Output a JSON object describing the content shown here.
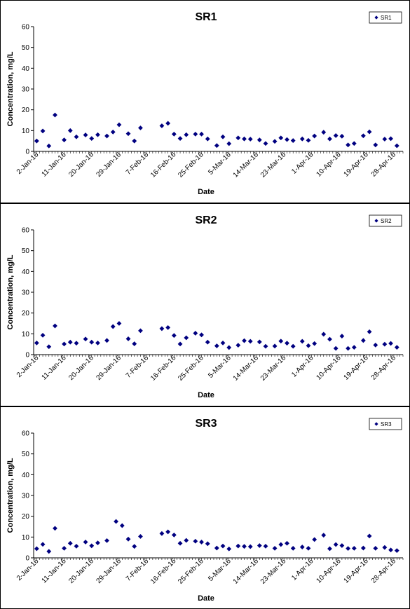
{
  "colors": {
    "marker": "#000080",
    "axis": "#000000",
    "background": "#ffffff"
  },
  "chart_data": [
    {
      "type": "scatter",
      "title": "SR1",
      "xlabel": "Date",
      "ylabel": "Concentration, mg/L",
      "ylim": [
        0,
        60
      ],
      "yticks": [
        "0",
        "10",
        "20",
        "30",
        "40",
        "50",
        "60"
      ],
      "xlim": [
        "2016-01-01",
        "2016-05-01"
      ],
      "xticks": [
        "2-Jan-16",
        "11-Jan-16",
        "20-Jan-16",
        "29-Jan-16",
        "7-Feb-16",
        "16-Feb-16",
        "25-Feb-16",
        "5-Mar-16",
        "14-Mar-16",
        "23-Mar-16",
        "1-Apr-16",
        "10-Apr-16",
        "19-Apr-16",
        "28-Apr-16"
      ],
      "grid": false,
      "legend": "top-right",
      "series": [
        {
          "name": "SR1",
          "marker": "diamond",
          "x": [
            "2016-01-02",
            "2016-01-04",
            "2016-01-06",
            "2016-01-08",
            "2016-01-11",
            "2016-01-13",
            "2016-01-15",
            "2016-01-18",
            "2016-01-20",
            "2016-01-22",
            "2016-01-25",
            "2016-01-27",
            "2016-01-29",
            "2016-02-01",
            "2016-02-03",
            "2016-02-05",
            "2016-02-12",
            "2016-02-14",
            "2016-02-16",
            "2016-02-18",
            "2016-02-20",
            "2016-02-23",
            "2016-02-25",
            "2016-02-27",
            "2016-03-01",
            "2016-03-03",
            "2016-03-05",
            "2016-03-08",
            "2016-03-10",
            "2016-03-12",
            "2016-03-15",
            "2016-03-17",
            "2016-03-20",
            "2016-03-22",
            "2016-03-24",
            "2016-03-26",
            "2016-03-29",
            "2016-03-31",
            "2016-04-02",
            "2016-04-05",
            "2016-04-07",
            "2016-04-09",
            "2016-04-11",
            "2016-04-13",
            "2016-04-15",
            "2016-04-18",
            "2016-04-20",
            "2016-04-22",
            "2016-04-25",
            "2016-04-27",
            "2016-04-29"
          ],
          "y": [
            5,
            9.8,
            2.6,
            17.5,
            5.5,
            10,
            7,
            7.9,
            6.2,
            8,
            7.4,
            9.3,
            12.8,
            8.5,
            5,
            11.3,
            12.3,
            13.5,
            8.3,
            6.2,
            8,
            8.3,
            8.3,
            6,
            2.8,
            7,
            3.7,
            6.5,
            6,
            5.9,
            5.5,
            3.8,
            4.8,
            6.5,
            5.7,
            5.2,
            6,
            5.3,
            7.4,
            9.2,
            6,
            7.6,
            7.3,
            3.1,
            3.8,
            7.5,
            9.4,
            3.1,
            5.9,
            6.1,
            2.7
          ]
        }
      ]
    },
    {
      "type": "scatter",
      "title": "SR2",
      "xlabel": "Date",
      "ylabel": "Concentration, mg/L",
      "ylim": [
        0,
        60
      ],
      "yticks": [
        "0",
        "10",
        "20",
        "30",
        "40",
        "50",
        "60"
      ],
      "xlim": [
        "2016-01-01",
        "2016-05-01"
      ],
      "xticks": [
        "2-Jan-16",
        "11-Jan-16",
        "20-Jan-16",
        "29-Jan-16",
        "7-Feb-16",
        "16-Feb-16",
        "25-Feb-16",
        "5-Mar-16",
        "14-Mar-16",
        "23-Mar-16",
        "1-Apr-16",
        "10-Apr-16",
        "19-Apr-16",
        "28-Apr-16"
      ],
      "grid": false,
      "legend": "top-right",
      "series": [
        {
          "name": "SR2",
          "marker": "diamond",
          "x": [
            "2016-01-02",
            "2016-01-04",
            "2016-01-06",
            "2016-01-08",
            "2016-01-11",
            "2016-01-13",
            "2016-01-15",
            "2016-01-18",
            "2016-01-20",
            "2016-01-22",
            "2016-01-25",
            "2016-01-27",
            "2016-01-29",
            "2016-02-01",
            "2016-02-03",
            "2016-02-05",
            "2016-02-12",
            "2016-02-14",
            "2016-02-16",
            "2016-02-18",
            "2016-02-20",
            "2016-02-23",
            "2016-02-25",
            "2016-02-27",
            "2016-03-01",
            "2016-03-03",
            "2016-03-05",
            "2016-03-08",
            "2016-03-10",
            "2016-03-12",
            "2016-03-15",
            "2016-03-17",
            "2016-03-20",
            "2016-03-22",
            "2016-03-24",
            "2016-03-26",
            "2016-03-29",
            "2016-03-31",
            "2016-04-02",
            "2016-04-05",
            "2016-04-07",
            "2016-04-09",
            "2016-04-11",
            "2016-04-13",
            "2016-04-15",
            "2016-04-18",
            "2016-04-20",
            "2016-04-22",
            "2016-04-25",
            "2016-04-27",
            "2016-04-29"
          ],
          "y": [
            5.6,
            9.3,
            3.8,
            13.8,
            5.1,
            6,
            5.5,
            7.5,
            6,
            5.6,
            6.8,
            13.5,
            15,
            7.6,
            5.2,
            11.5,
            12.5,
            13,
            9.2,
            5.1,
            8.1,
            10.3,
            9.5,
            6,
            4.2,
            5.6,
            3.4,
            4.5,
            6.7,
            6.4,
            6.1,
            4,
            4.1,
            6.5,
            5.5,
            4,
            6.4,
            4.3,
            5.3,
            9.8,
            7.4,
            3,
            8.9,
            3,
            3.5,
            6.8,
            11,
            4.6,
            5,
            5.4,
            3.5
          ]
        }
      ]
    },
    {
      "type": "scatter",
      "title": "SR3",
      "xlabel": "Date",
      "ylabel": "Concentration, mg/L",
      "ylim": [
        0,
        60
      ],
      "yticks": [
        "0",
        "10",
        "20",
        "30",
        "40",
        "50",
        "60"
      ],
      "xlim": [
        "2016-01-01",
        "2016-05-01"
      ],
      "xticks": [
        "2-Jan-16",
        "11-Jan-16",
        "20-Jan-16",
        "29-Jan-16",
        "7-Feb-16",
        "16-Feb-16",
        "25-Feb-16",
        "5-Mar-16",
        "14-Mar-16",
        "23-Mar-16",
        "1-Apr-16",
        "10-Apr-16",
        "19-Apr-16",
        "28-Apr-16"
      ],
      "grid": false,
      "legend": "top-right",
      "series": [
        {
          "name": "SR3",
          "marker": "diamond",
          "x": [
            "2016-01-02",
            "2016-01-04",
            "2016-01-06",
            "2016-01-08",
            "2016-01-11",
            "2016-01-13",
            "2016-01-15",
            "2016-01-18",
            "2016-01-20",
            "2016-01-22",
            "2016-01-25",
            "2016-01-28",
            "2016-01-30",
            "2016-02-01",
            "2016-02-03",
            "2016-02-05",
            "2016-02-12",
            "2016-02-14",
            "2016-02-16",
            "2016-02-18",
            "2016-02-20",
            "2016-02-23",
            "2016-02-25",
            "2016-02-27",
            "2016-03-01",
            "2016-03-03",
            "2016-03-05",
            "2016-03-08",
            "2016-03-10",
            "2016-03-12",
            "2016-03-15",
            "2016-03-17",
            "2016-03-20",
            "2016-03-22",
            "2016-03-24",
            "2016-03-26",
            "2016-03-29",
            "2016-03-31",
            "2016-04-02",
            "2016-04-05",
            "2016-04-07",
            "2016-04-09",
            "2016-04-11",
            "2016-04-13",
            "2016-04-15",
            "2016-04-18",
            "2016-04-20",
            "2016-04-22",
            "2016-04-25",
            "2016-04-27",
            "2016-04-29"
          ],
          "y": [
            4.4,
            6.5,
            3.1,
            14.2,
            4.6,
            7,
            5.6,
            7.6,
            5.8,
            7.2,
            8.3,
            17.5,
            15.5,
            9,
            5.5,
            10.3,
            11.7,
            12.5,
            11,
            7,
            8.4,
            8,
            7.6,
            6.8,
            4.7,
            5.7,
            4.3,
            5.7,
            5.5,
            5.4,
            5.9,
            5.6,
            4.6,
            6.4,
            7,
            4.6,
            5.2,
            4.6,
            8.8,
            10.9,
            4.4,
            6.4,
            5.9,
            4.5,
            4.6,
            4.7,
            10.5,
            4.6,
            5,
            3.8,
            3.5
          ]
        }
      ]
    }
  ]
}
